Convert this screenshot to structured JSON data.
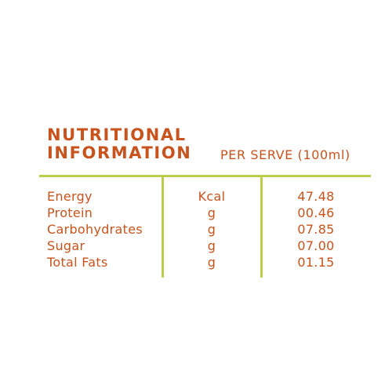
{
  "header": {
    "title_line1": "NUTRITIONAL",
    "title_line2": "INFORMATION",
    "per_serve": "PER SERVE (100ml)"
  },
  "rows": [
    {
      "name": "Energy",
      "unit": "Kcal",
      "value": "47.48"
    },
    {
      "name": "Protein",
      "unit": "g",
      "value": "00.46"
    },
    {
      "name": "Carbohydrates",
      "unit": "g",
      "value": "07.85"
    },
    {
      "name": "Sugar",
      "unit": "g",
      "value": "07.00"
    },
    {
      "name": "Total Fats",
      "unit": "g",
      "value": "01.15"
    }
  ],
  "colors": {
    "text": "#c8531d",
    "rule": "#bccd4b"
  }
}
